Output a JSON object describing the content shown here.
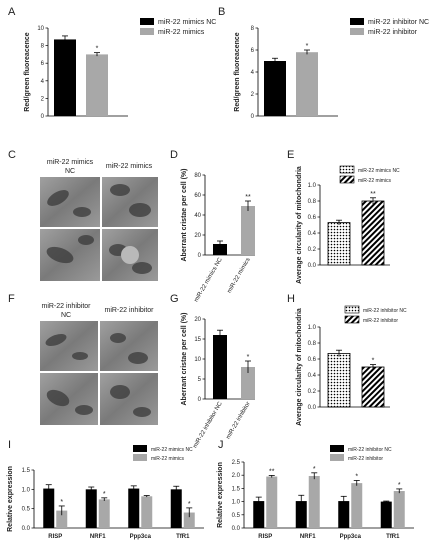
{
  "panel_labels": [
    "A",
    "B",
    "C",
    "D",
    "E",
    "F",
    "G",
    "H",
    "I",
    "J"
  ],
  "micrographs": {
    "C": {
      "titles": [
        "miR-22 mimics",
        "NC",
        "miR-22 mimics"
      ]
    },
    "F": {
      "titles": [
        "miR-22 inhibitor",
        "NC",
        "miR-22 inhibitor"
      ]
    }
  },
  "colors": {
    "black_bar": "#000000",
    "gray_bar": "#a8a8a8",
    "micrograph_tone": "#8c8c8c"
  },
  "chart_data": [
    {
      "panel": "A",
      "type": "bar",
      "categories": [
        "miR-22 mimics NC",
        "miR-22 mimics"
      ],
      "values": [
        8.7,
        7.0
      ],
      "errors": [
        0.4,
        0.2
      ],
      "significance": [
        "",
        "*"
      ],
      "xlabel": "",
      "ylabel": "Red/green fluoreacence",
      "ylim": [
        0,
        10
      ],
      "yticks": [
        "0",
        "2",
        "4",
        "6",
        "8",
        "10"
      ],
      "series": [
        {
          "name": "miR-22 mimics NC",
          "color": "#000000"
        },
        {
          "name": "miR-22 mimics",
          "color": "#a8a8a8"
        }
      ],
      "legend": "top-right"
    },
    {
      "panel": "B",
      "type": "bar",
      "categories": [
        "miR-22 inhibitor NC",
        "miR-22 inhibitor"
      ],
      "values": [
        5.0,
        5.8
      ],
      "errors": [
        0.25,
        0.2
      ],
      "significance": [
        "",
        "*"
      ],
      "xlabel": "",
      "ylabel": "Red/green fluoreacence",
      "ylim": [
        0,
        8
      ],
      "yticks": [
        "0",
        "2",
        "4",
        "6",
        "8"
      ],
      "series": [
        {
          "name": "miR-22 inhibitor NC",
          "color": "#000000"
        },
        {
          "name": "miR-22 inhibitor",
          "color": "#a8a8a8"
        }
      ],
      "legend": "top-right"
    },
    {
      "panel": "D",
      "type": "bar",
      "categories": [
        "miR-22 mimics NC",
        "miR-22 mimics"
      ],
      "values": [
        11,
        49
      ],
      "errors": [
        3,
        5
      ],
      "significance": [
        "",
        "**"
      ],
      "xlabel": "",
      "ylabel": "Aberrant cristae per cell (%)",
      "ylim": [
        0,
        80
      ],
      "yticks": [
        "0",
        "20",
        "40",
        "60",
        "80"
      ],
      "legend": "none"
    },
    {
      "panel": "E",
      "type": "bar",
      "categories": [
        "miR-22 mimics NC",
        "miR-22 mimics"
      ],
      "values": [
        0.53,
        0.8
      ],
      "errors": [
        0.03,
        0.04
      ],
      "significance": [
        "",
        "**"
      ],
      "xlabel": "",
      "ylabel": "Average circularity of mitochondria",
      "ylim": [
        0,
        1.0
      ],
      "yticks": [
        "0.0",
        "0.2",
        "0.4",
        "0.6",
        "0.8",
        "1.0"
      ],
      "series": [
        {
          "name": "miR-22 mimics NC",
          "pattern": "dots"
        },
        {
          "name": "miR-22 mimics",
          "pattern": "hatch"
        }
      ],
      "legend": "top-right"
    },
    {
      "panel": "G",
      "type": "bar",
      "categories": [
        "miR-22 inhibitor NC",
        "miR-22 inhibitor"
      ],
      "values": [
        16,
        8
      ],
      "errors": [
        1.2,
        1.5
      ],
      "significance": [
        "",
        "*"
      ],
      "xlabel": "",
      "ylabel": "Aberrant cristae per cell (%)",
      "ylim": [
        0,
        20
      ],
      "yticks": [
        "0",
        "5",
        "10",
        "15",
        "20"
      ],
      "legend": "none"
    },
    {
      "panel": "H",
      "type": "bar",
      "categories": [
        "miR-22 inhibitor NC",
        "miR-22 inhibitor"
      ],
      "values": [
        0.67,
        0.5
      ],
      "errors": [
        0.04,
        0.03
      ],
      "significance": [
        "",
        "*"
      ],
      "xlabel": "",
      "ylabel": "Average circularity of mitochondria",
      "ylim": [
        0,
        1.0
      ],
      "yticks": [
        "0.0",
        "0.2",
        "0.4",
        "0.6",
        "0.8",
        "1.0"
      ],
      "series": [
        {
          "name": "miR-22 inhibitor NC",
          "pattern": "dots"
        },
        {
          "name": "miR-22 inhibitor",
          "pattern": "hatch"
        }
      ],
      "legend": "top-right"
    },
    {
      "panel": "I",
      "type": "bar",
      "categories": [
        "RISP",
        "NRF1",
        "Ppp3ca",
        "TfR1"
      ],
      "series": [
        {
          "name": "miR-22 mimics NC",
          "color": "#000000",
          "values": [
            1.02,
            1.0,
            1.02,
            1.0
          ],
          "errors": [
            0.1,
            0.06,
            0.07,
            0.08
          ]
        },
        {
          "name": "miR-22 mimics",
          "color": "#a8a8a8",
          "values": [
            0.45,
            0.74,
            0.82,
            0.4
          ],
          "errors": [
            0.12,
            0.04,
            0.02,
            0.12
          ]
        }
      ],
      "significance": [
        "*",
        "*",
        "",
        "*"
      ],
      "xlabel": "",
      "ylabel": "Relative expression",
      "ylim": [
        0,
        1.5
      ],
      "yticks": [
        "0.0",
        "0.5",
        "1.0",
        "1.5"
      ],
      "legend": "top-right"
    },
    {
      "panel": "J",
      "type": "bar",
      "categories": [
        "RISP",
        "NRF1",
        "Ppp3ca",
        "TfR1"
      ],
      "series": [
        {
          "name": "miR-22 inhibitor NC",
          "color": "#000000",
          "values": [
            1.02,
            1.02,
            1.02,
            1.0
          ],
          "errors": [
            0.15,
            0.22,
            0.18,
            0.02
          ]
        },
        {
          "name": "miR-22 inhibitor",
          "color": "#a8a8a8",
          "values": [
            1.95,
            1.97,
            1.7,
            1.4
          ],
          "errors": [
            0.04,
            0.12,
            0.1,
            0.08
          ]
        }
      ],
      "significance": [
        "**",
        "*",
        "*",
        "*"
      ],
      "xlabel": "",
      "ylabel": "Relative expression",
      "ylim": [
        0,
        2.5
      ],
      "yticks": [
        "0.0",
        "0.5",
        "1.0",
        "1.5",
        "2.0",
        "2.5"
      ],
      "legend": "top-right"
    }
  ]
}
